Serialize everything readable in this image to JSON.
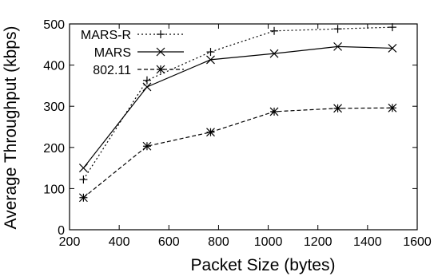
{
  "chart_data": {
    "type": "line",
    "xlabel": "Packet Size (bytes)",
    "ylabel": "Average Throughput (kbps)",
    "xlim": [
      200,
      1600
    ],
    "ylim": [
      0,
      500
    ],
    "xticks": [
      200,
      400,
      600,
      800,
      1000,
      1200,
      1400,
      1600
    ],
    "yticks": [
      0,
      100,
      200,
      300,
      400,
      500
    ],
    "x": [
      256,
      512,
      768,
      1024,
      1280,
      1500
    ],
    "grid": false,
    "legend_position": "top-left",
    "series": [
      {
        "name": "MARS-R",
        "values": [
          122,
          363,
          432,
          483,
          488,
          492
        ],
        "marker": "plus",
        "line_style": "dotted"
      },
      {
        "name": "MARS",
        "values": [
          150,
          347,
          413,
          428,
          445,
          441
        ],
        "marker": "cross",
        "line_style": "solid"
      },
      {
        "name": "802.11",
        "values": [
          78,
          203,
          237,
          287,
          295,
          296
        ],
        "marker": "star",
        "line_style": "dashed"
      }
    ]
  }
}
